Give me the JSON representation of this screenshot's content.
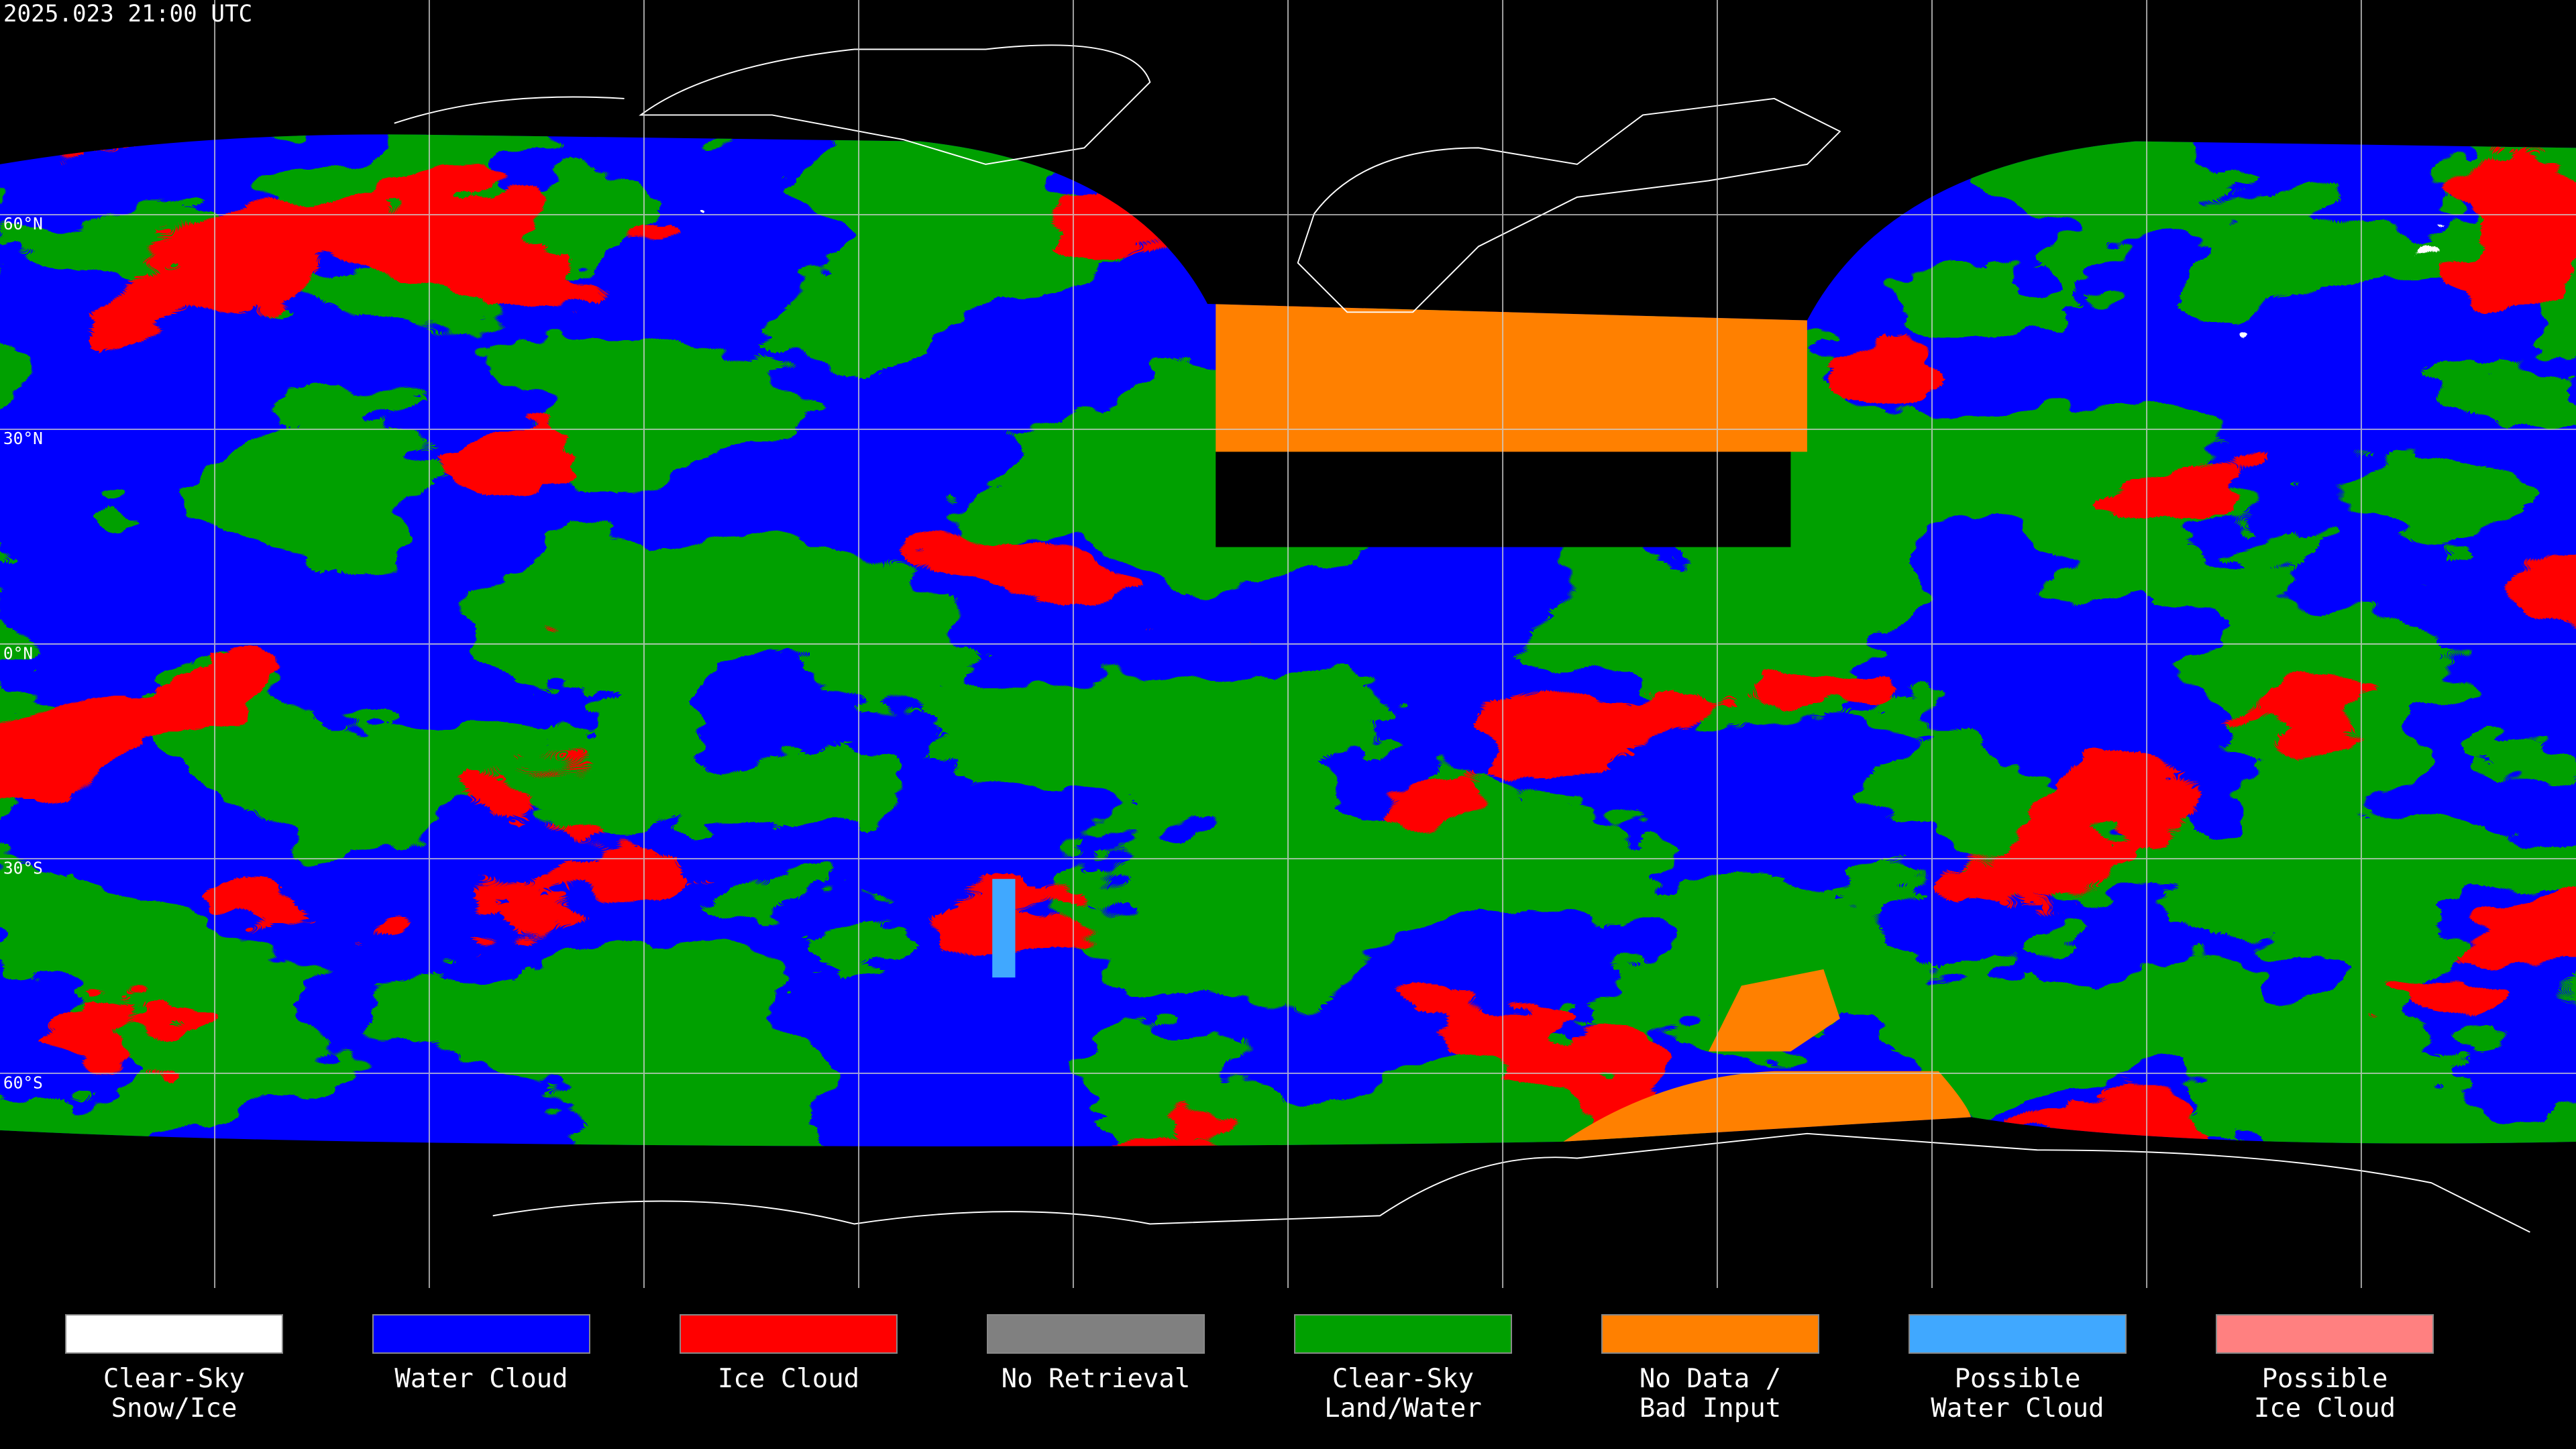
{
  "header": {
    "title": "2025.023 21:00 UTC"
  },
  "map": {
    "latitude_labels": [
      "60°N",
      "30°N",
      "0°N",
      "30°S",
      "60°S"
    ]
  },
  "legend": [
    {
      "label_lines": [
        "Clear-Sky",
        "Snow/Ice"
      ],
      "color": "#ffffff"
    },
    {
      "label_lines": [
        "Water Cloud"
      ],
      "color": "#0000ff"
    },
    {
      "label_lines": [
        "Ice Cloud"
      ],
      "color": "#ff0000"
    },
    {
      "label_lines": [
        "No Retrieval"
      ],
      "color": "#808080"
    },
    {
      "label_lines": [
        "Clear-Sky",
        "Land/Water"
      ],
      "color": "#00a000"
    },
    {
      "label_lines": [
        "No Data /",
        "Bad Input"
      ],
      "color": "#ff8000"
    },
    {
      "label_lines": [
        "Possible",
        "Water Cloud"
      ],
      "color": "#40a8ff"
    },
    {
      "label_lines": [
        "Possible",
        "Ice Cloud"
      ],
      "color": "#ff8080"
    }
  ]
}
